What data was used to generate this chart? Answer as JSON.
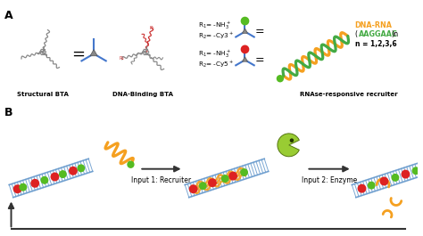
{
  "title_A": "A",
  "title_B": "B",
  "label_structural": "Structural BTA",
  "label_dna_binding": "DNA-Binding BTA",
  "label_rnase": "RNAse-responsive recruiter",
  "input1": "Input 1: Recruiter",
  "input2": "Input 2: Enzyme",
  "dna_rna_label": "DNA-RNA",
  "dna_seq_prefix": "(",
  "dna_seq_green": "AAGGAAC",
  "dna_seq_suffix": ")",
  "dna_n_sub": "n",
  "n_values": "n = 1,2,3,6",
  "bg_color": "#ffffff",
  "fiber_color": "#6699cc",
  "red_dot": "#dd2222",
  "green_dot": "#55bb22",
  "orange_color": "#f5a020",
  "enzyme_color": "#99cc33",
  "arrow_color": "#333333",
  "dna_green": "#44aa44",
  "bta_gray": "#888888",
  "bta_blue": "#4477cc",
  "text_color": "#111111"
}
